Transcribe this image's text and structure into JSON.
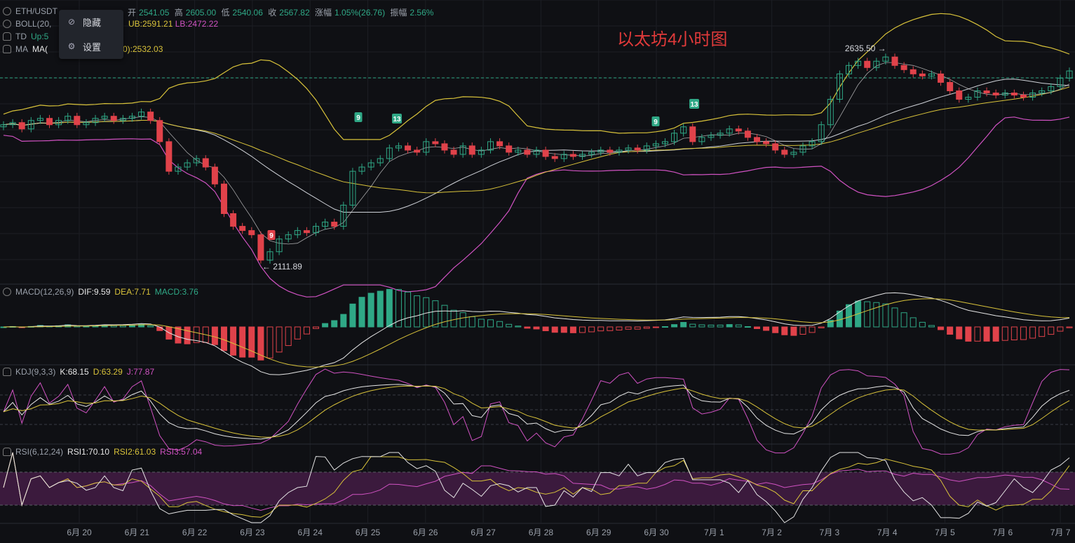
{
  "header": {
    "symbol": "ETH/USDT",
    "open_label": "开",
    "open": "2541.05",
    "high_label": "高",
    "high": "2605.00",
    "low_label": "低",
    "low": "2540.06",
    "close_label": "收",
    "close": "2567.82",
    "change_label": "涨幅",
    "change": "1.05%(26.76)",
    "amp_label": "振幅",
    "amp": "2.56%"
  },
  "indicators": {
    "boll": {
      "label": "BOLL(20,",
      "ub": "UB:2591.21",
      "lb": "LB:2472.22"
    },
    "td": {
      "label": "TD",
      "up": "Up:5"
    },
    "ma": {
      "label": "MA",
      "ma_label": "MA(",
      "value": "0):2532.03"
    },
    "macd": {
      "label": "MACD(12,26,9)",
      "dif": "DIF:9.59",
      "dea": "DEA:7.71",
      "macd": "MACD:3.76"
    },
    "kdj": {
      "label": "KDJ(9,3,3)",
      "k": "K:68.15",
      "d": "D:63.29",
      "j": "J:77.87"
    },
    "rsi": {
      "label": "RSI(6,12,24)",
      "rsi1": "RSI1:70.10",
      "rsi2": "RSI2:61.03",
      "rsi3": "RSI3:57.04"
    }
  },
  "context_menu": {
    "hide": "隐藏",
    "settings": "设置"
  },
  "chart_title": "以太坊4小时图",
  "colors": {
    "up": "#2fa886",
    "down": "#e0424a",
    "boll_band": "#d8c23a",
    "lower_band": "#d052c2",
    "mid": "#cfd2d8",
    "bg": "#0f1014"
  },
  "chart_data": {
    "type": "candlestick",
    "xlabels": [
      "6月 20",
      "6月 21",
      "6月 22",
      "6月 23",
      "6月 24",
      "6月 25",
      "6月 26",
      "6月 27",
      "6月 28",
      "6月 29",
      "6月 30",
      "7月 1",
      "7月 2",
      "7月 3",
      "7月 4",
      "7月 5",
      "7月 6",
      "7月 7"
    ],
    "annotations": {
      "high": "2635.50",
      "low": "2111.89"
    },
    "td_counts": [
      {
        "text": "9",
        "kind": "down",
        "near": "6月 23"
      },
      {
        "text": "9",
        "kind": "up",
        "near": "6月 25"
      },
      {
        "text": "13",
        "kind": "up",
        "near": "6月 25"
      },
      {
        "text": "9",
        "kind": "up",
        "near": "6月 30"
      },
      {
        "text": "13",
        "kind": "up",
        "near": "7月 1"
      }
    ],
    "ohlc_close": [
      2440,
      2445,
      2430,
      2450,
      2455,
      2440,
      2450,
      2460,
      2440,
      2445,
      2455,
      2460,
      2450,
      2455,
      2460,
      2470,
      2450,
      2400,
      2330,
      2340,
      2350,
      2360,
      2340,
      2300,
      2230,
      2200,
      2190,
      2180,
      2120,
      2140,
      2170,
      2180,
      2190,
      2185,
      2200,
      2210,
      2200,
      2250,
      2330,
      2340,
      2350,
      2360,
      2385,
      2390,
      2380,
      2375,
      2400,
      2395,
      2380,
      2370,
      2390,
      2370,
      2380,
      2400,
      2390,
      2375,
      2380,
      2370,
      2380,
      2365,
      2360,
      2370,
      2365,
      2370,
      2375,
      2380,
      2375,
      2380,
      2385,
      2380,
      2390,
      2395,
      2400,
      2420,
      2435,
      2400,
      2410,
      2415,
      2420,
      2430,
      2425,
      2410,
      2400,
      2395,
      2380,
      2370,
      2375,
      2390,
      2400,
      2440,
      2500,
      2560,
      2580,
      2590,
      2575,
      2590,
      2600,
      2580,
      2570,
      2560,
      2555,
      2560,
      2540,
      2520,
      2500,
      2505,
      2520,
      2515,
      2510,
      2515,
      2510,
      2505,
      2515,
      2520,
      2530,
      2550,
      2567
    ]
  }
}
